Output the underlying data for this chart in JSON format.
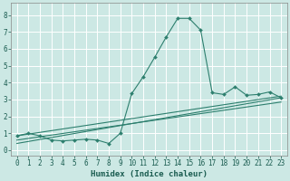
{
  "title": "",
  "xlabel": "Humidex (Indice chaleur)",
  "ylabel": "",
  "bg_color": "#cce8e4",
  "grid_color": "#ffffff",
  "line_color": "#2d7f6e",
  "xlim": [
    -0.5,
    23.5
  ],
  "ylim": [
    -0.3,
    8.7
  ],
  "xticks": [
    0,
    1,
    2,
    3,
    4,
    5,
    6,
    7,
    8,
    9,
    10,
    11,
    12,
    13,
    14,
    15,
    16,
    17,
    18,
    19,
    20,
    21,
    22,
    23
  ],
  "yticks": [
    0,
    1,
    2,
    3,
    4,
    5,
    6,
    7,
    8
  ],
  "series": [
    {
      "x": [
        0,
        1,
        2,
        3,
        4,
        5,
        6,
        7,
        8,
        9,
        10,
        11,
        12,
        13,
        14,
        15,
        16,
        17,
        18,
        19,
        20,
        21,
        22,
        23
      ],
      "y": [
        0.85,
        1.0,
        0.85,
        0.6,
        0.55,
        0.6,
        0.65,
        0.6,
        0.4,
        1.0,
        3.35,
        4.35,
        5.5,
        6.7,
        7.8,
        7.8,
        7.1,
        3.4,
        3.3,
        3.75,
        3.25,
        3.3,
        3.45,
        3.1
      ],
      "marker": true
    },
    {
      "x": [
        0,
        23
      ],
      "y": [
        0.85,
        3.2
      ],
      "marker": false
    },
    {
      "x": [
        0,
        23
      ],
      "y": [
        0.6,
        2.85
      ],
      "marker": false
    },
    {
      "x": [
        0,
        23
      ],
      "y": [
        0.4,
        3.1
      ],
      "marker": false
    }
  ]
}
